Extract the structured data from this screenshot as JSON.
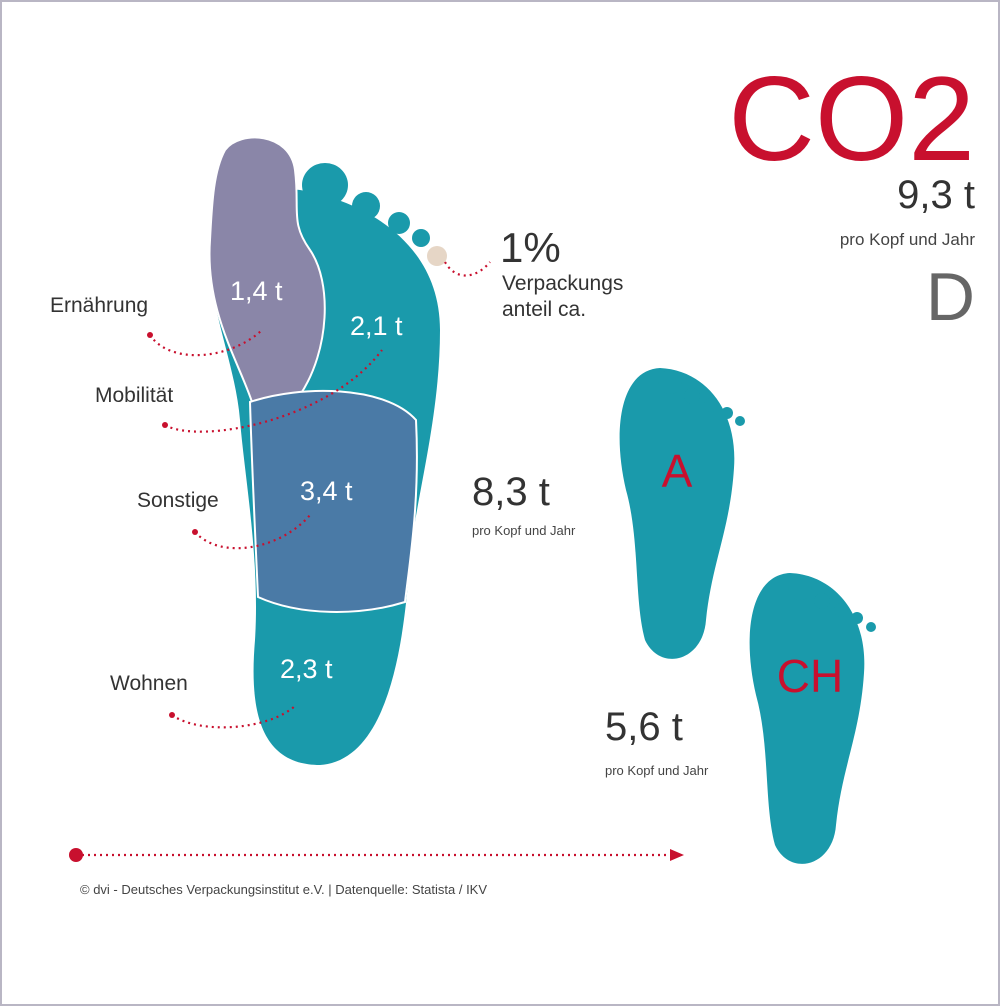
{
  "title": "CO2",
  "germany": {
    "value": "9,3 t",
    "caption": "pro Kopf und Jahr",
    "country": "D"
  },
  "packaging": {
    "share": "1%",
    "line1": "Verpackungs",
    "line2": "anteil ca."
  },
  "segments": [
    {
      "label": "Ernährung",
      "value": "1,4 t"
    },
    {
      "label": "Mobilität",
      "value": "2,1 t"
    },
    {
      "label": "Sonstige",
      "value": "3,4 t"
    },
    {
      "label": "Wohnen",
      "value": "2,3 t"
    }
  ],
  "austria": {
    "country": "A",
    "value": "8,3 t",
    "caption": "pro Kopf und Jahr"
  },
  "switzerland": {
    "country": "CH",
    "value": "5,6 t",
    "caption": "pro Kopf und Jahr"
  },
  "footer": "© dvi - Deutsches Verpackungsinstitut e.V. | Datenquelle: Statista / IKV"
}
